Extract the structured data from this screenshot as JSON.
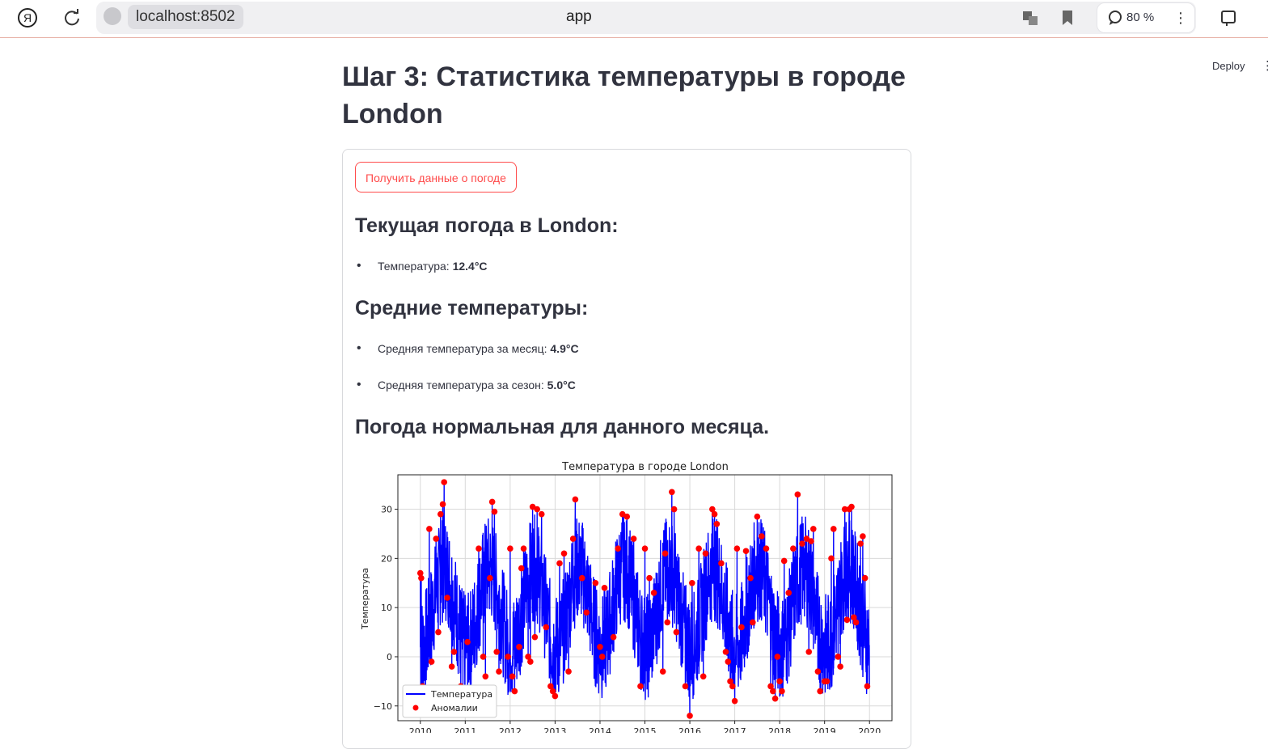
{
  "browser": {
    "profile_icon": "yandex-icon",
    "address": "localhost:8502",
    "tab_title": "app",
    "zoom": "80 %"
  },
  "app": {
    "deploy": "Deploy",
    "kebab": "⋮",
    "title_line1": "Шаг 3: Статистика температуры в городе",
    "title_line2": "London",
    "button": "Получить данные о погоде",
    "current_heading": "Текущая погода в London:",
    "current_temp_label": "Температура:",
    "current_temp_value": "12.4°C",
    "avg_heading": "Средние температуры:",
    "avg_month_label": "Средняя температура за месяц:",
    "avg_month_value": "4.9°C",
    "avg_season_label": "Средняя температура за сезон:",
    "avg_season_value": "5.0°C",
    "status_heading": "Погода нормальная для данного месяца."
  },
  "chart_data": {
    "type": "line",
    "title": "Температура в городе London",
    "xlabel": "",
    "ylabel": "Температура",
    "x_ticks": [
      "2010",
      "2011",
      "2012",
      "2013",
      "2014",
      "2015",
      "2016",
      "2017",
      "2018",
      "2019",
      "2020"
    ],
    "y_ticks": [
      -10,
      0,
      10,
      20,
      30
    ],
    "ylim": [
      -13,
      37
    ],
    "xlim": [
      2009.5,
      2020.5
    ],
    "grid": true,
    "legend_position": "lower-left",
    "series": [
      {
        "name": "Температура",
        "kind": "line",
        "color": "#0000ff"
      },
      {
        "name": "Аномалии",
        "kind": "scatter",
        "color": "#ff0000"
      }
    ],
    "anomalies": [
      [
        2010.0,
        17
      ],
      [
        2010.02,
        16
      ],
      [
        2010.05,
        -6
      ],
      [
        2010.2,
        26
      ],
      [
        2010.25,
        -1
      ],
      [
        2010.35,
        24
      ],
      [
        2010.4,
        5
      ],
      [
        2010.45,
        29
      ],
      [
        2010.5,
        31
      ],
      [
        2010.53,
        35.5
      ],
      [
        2010.6,
        12
      ],
      [
        2010.7,
        -2
      ],
      [
        2010.75,
        1
      ],
      [
        2010.9,
        -6
      ],
      [
        2010.95,
        -7
      ],
      [
        2011.05,
        3
      ],
      [
        2011.3,
        22
      ],
      [
        2011.4,
        0
      ],
      [
        2011.45,
        -4
      ],
      [
        2011.55,
        16
      ],
      [
        2011.6,
        31.5
      ],
      [
        2011.65,
        29.5
      ],
      [
        2011.7,
        1
      ],
      [
        2011.75,
        -3
      ],
      [
        2011.95,
        0
      ],
      [
        2012.0,
        22
      ],
      [
        2012.05,
        -4
      ],
      [
        2012.1,
        -7
      ],
      [
        2012.2,
        2
      ],
      [
        2012.25,
        18
      ],
      [
        2012.3,
        22
      ],
      [
        2012.4,
        0
      ],
      [
        2012.45,
        -1
      ],
      [
        2012.55,
        4
      ],
      [
        2012.5,
        30.5
      ],
      [
        2012.6,
        30
      ],
      [
        2012.7,
        29
      ],
      [
        2012.8,
        6
      ],
      [
        2012.9,
        -6
      ],
      [
        2012.95,
        -7
      ],
      [
        2013.0,
        -8
      ],
      [
        2013.1,
        19
      ],
      [
        2013.2,
        21
      ],
      [
        2013.3,
        -3
      ],
      [
        2013.4,
        24
      ],
      [
        2013.45,
        32
      ],
      [
        2013.6,
        16
      ],
      [
        2013.7,
        9
      ],
      [
        2013.9,
        15
      ],
      [
        2014.0,
        2
      ],
      [
        2014.05,
        0
      ],
      [
        2014.1,
        14
      ],
      [
        2014.3,
        4
      ],
      [
        2014.4,
        22
      ],
      [
        2014.5,
        29
      ],
      [
        2014.6,
        28.5
      ],
      [
        2014.75,
        24
      ],
      [
        2014.9,
        -6
      ],
      [
        2015.0,
        22
      ],
      [
        2015.1,
        16
      ],
      [
        2015.2,
        13
      ],
      [
        2015.4,
        -3
      ],
      [
        2015.45,
        21
      ],
      [
        2015.5,
        7
      ],
      [
        2015.6,
        33.5
      ],
      [
        2015.65,
        30
      ],
      [
        2015.7,
        5
      ],
      [
        2015.9,
        -6
      ],
      [
        2016.0,
        -12
      ],
      [
        2016.05,
        15
      ],
      [
        2016.2,
        22
      ],
      [
        2016.3,
        -4
      ],
      [
        2016.35,
        21
      ],
      [
        2016.5,
        30
      ],
      [
        2016.55,
        29
      ],
      [
        2016.6,
        27
      ],
      [
        2016.7,
        19
      ],
      [
        2016.8,
        1
      ],
      [
        2016.85,
        -1
      ],
      [
        2016.9,
        -5
      ],
      [
        2016.95,
        -6
      ],
      [
        2017.0,
        -9
      ],
      [
        2017.05,
        22
      ],
      [
        2017.15,
        6
      ],
      [
        2017.25,
        21.5
      ],
      [
        2017.35,
        16
      ],
      [
        2017.4,
        7
      ],
      [
        2017.5,
        28.5
      ],
      [
        2017.6,
        24.5
      ],
      [
        2017.7,
        22
      ],
      [
        2017.8,
        -6
      ],
      [
        2017.85,
        -7
      ],
      [
        2017.9,
        -8.5
      ],
      [
        2017.95,
        0
      ],
      [
        2018.0,
        -5
      ],
      [
        2018.05,
        -7
      ],
      [
        2018.1,
        19.5
      ],
      [
        2018.2,
        13
      ],
      [
        2018.3,
        22
      ],
      [
        2018.4,
        33
      ],
      [
        2018.5,
        23
      ],
      [
        2018.6,
        24
      ],
      [
        2018.65,
        1
      ],
      [
        2018.7,
        23.5
      ],
      [
        2018.75,
        26
      ],
      [
        2018.85,
        -3
      ],
      [
        2018.9,
        -7
      ],
      [
        2019.0,
        -5
      ],
      [
        2019.05,
        -5
      ],
      [
        2019.15,
        20
      ],
      [
        2019.2,
        26
      ],
      [
        2019.3,
        0
      ],
      [
        2019.35,
        -2
      ],
      [
        2019.45,
        30
      ],
      [
        2019.5,
        7.5
      ],
      [
        2019.55,
        30
      ],
      [
        2019.6,
        30.5
      ],
      [
        2019.65,
        8
      ],
      [
        2019.7,
        7
      ],
      [
        2019.8,
        23
      ],
      [
        2019.85,
        24.5
      ],
      [
        2019.9,
        16
      ],
      [
        2019.95,
        -6
      ]
    ]
  }
}
